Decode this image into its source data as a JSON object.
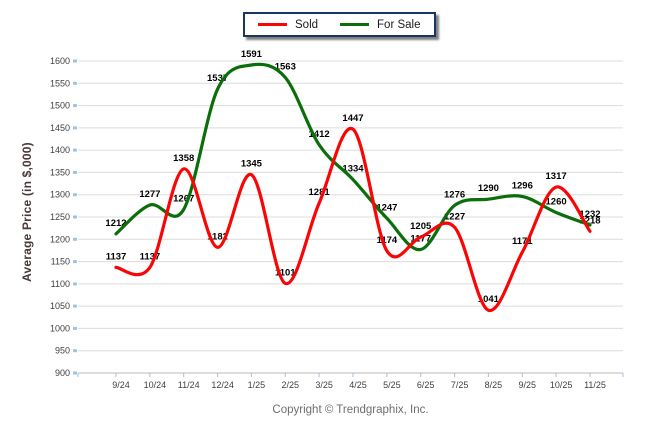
{
  "chart_data": {
    "type": "line",
    "title": "",
    "categories": [
      "9/24",
      "10/24",
      "11/24",
      "12/24",
      "1/25",
      "2/25",
      "3/25",
      "4/25",
      "5/25",
      "6/25",
      "7/25",
      "8/25",
      "9/25",
      "10/25",
      "11/25"
    ],
    "series": [
      {
        "name": "Sold",
        "color": "#fa0505",
        "values": [
          1137,
          1137,
          1358,
          1182,
          1345,
          1101,
          1281,
          1447,
          1174,
          1205,
          1227,
          1041,
          1171,
          1317,
          1218
        ]
      },
      {
        "name": "For Sale",
        "color": "#0b6e0b",
        "values": [
          1212,
          1277,
          1267,
          1537,
          1591,
          1563,
          1412,
          1334,
          1247,
          1177,
          1276,
          1290,
          1296,
          1260,
          1232
        ]
      }
    ],
    "xlabel": "",
    "ylabel": "Average Price (in $,000)",
    "ylim": [
      900,
      1600
    ],
    "ytick_step": 50,
    "grid": "horizontal",
    "legend_position": "top-center",
    "point_labels": true,
    "curve": "smooth"
  },
  "footer": {
    "copyright": "Copyright © Trendgraphix, Inc."
  },
  "colors": {
    "sold_line": "#fa0505",
    "for_sale_line": "#0b6e0b",
    "axis_title_text": "#4a3838",
    "tick_text": "#3f3f3f",
    "gridline": "#dcdcdc",
    "axis_line": "#b9b9b9",
    "tick_mark": "#9dc3e6",
    "legend_border": "#17375e",
    "footer_text": "#6e6e6e",
    "background": "#ffffff"
  }
}
